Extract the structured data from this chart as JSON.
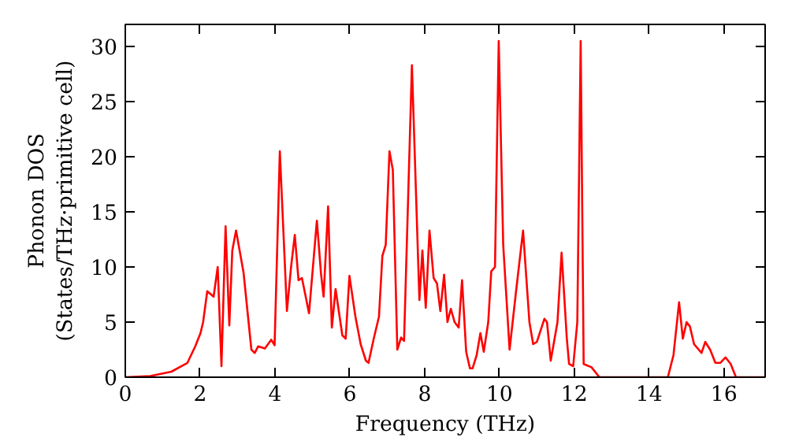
{
  "chart_data": {
    "type": "line",
    "xlabel": "Frequency (THz)",
    "ylabel": "Phonon DOS\n(States/THz·primitive cell)",
    "xlim": [
      0,
      17.1
    ],
    "ylim": [
      0,
      32
    ],
    "xticks": [
      0,
      2,
      4,
      6,
      8,
      10,
      12,
      14,
      16
    ],
    "yticks": [
      0,
      5,
      10,
      15,
      20,
      25,
      30
    ],
    "grid": false,
    "line_style": "solid",
    "series": [
      {
        "color": "#ff0000",
        "x": [
          0,
          0.67,
          1.23,
          1.66,
          1.87,
          2.01,
          2.08,
          2.19,
          2.36,
          2.47,
          2.57,
          2.68,
          2.78,
          2.86,
          2.96,
          3.16,
          3.37,
          3.46,
          3.55,
          3.73,
          3.9,
          3.99,
          4.13,
          4.32,
          4.43,
          4.53,
          4.63,
          4.72,
          4.81,
          4.91,
          5.12,
          5.23,
          5.3,
          5.42,
          5.52,
          5.62,
          5.8,
          5.89,
          5.99,
          6.15,
          6.29,
          6.43,
          6.5,
          6.64,
          6.78,
          6.87,
          6.96,
          7.06,
          7.15,
          7.27,
          7.37,
          7.45,
          7.66,
          7.86,
          7.94,
          8.03,
          8.13,
          8.24,
          8.33,
          8.42,
          8.52,
          8.61,
          8.7,
          8.8,
          8.91,
          9.0,
          9.11,
          9.21,
          9.28,
          9.39,
          9.49,
          9.58,
          9.7,
          9.78,
          9.88,
          9.98,
          10.1,
          10.27,
          10.45,
          10.63,
          10.8,
          10.9,
          11.0,
          11.2,
          11.27,
          11.37,
          11.55,
          11.66,
          11.8,
          11.86,
          11.97,
          12.08,
          12.17,
          12.25,
          12.46,
          12.67,
          14.5,
          14.65,
          14.8,
          14.9,
          15.0,
          15.09,
          15.2,
          15.4,
          15.5,
          15.63,
          15.77,
          15.9,
          16.04,
          16.18,
          16.32,
          17.1
        ],
        "values": [
          0,
          0.1,
          0.5,
          1.3,
          2.8,
          4,
          5,
          7.8,
          7.3,
          10,
          1,
          13.7,
          4.7,
          11.5,
          13.3,
          9.5,
          2.5,
          2.2,
          2.8,
          2.6,
          3.4,
          2.9,
          20.5,
          6,
          10,
          12.9,
          8.8,
          9,
          7.5,
          5.8,
          14.2,
          9.4,
          7.3,
          15.5,
          4.5,
          8,
          3.8,
          3.5,
          9.2,
          5.5,
          3,
          1.5,
          1.3,
          3.5,
          5.5,
          11,
          12,
          20.5,
          18.8,
          2.5,
          3.6,
          3.3,
          28.3,
          7,
          11.5,
          6.3,
          13.3,
          9,
          8.5,
          6,
          9.3,
          5,
          6.2,
          5,
          4.5,
          8.8,
          2.3,
          0.8,
          0.8,
          2,
          4,
          2.3,
          5,
          9.6,
          10,
          30.5,
          12,
          2.5,
          8,
          13.3,
          5,
          3,
          3.2,
          5.3,
          5,
          1.5,
          5,
          11.3,
          3.5,
          1.2,
          1,
          5,
          30.5,
          1.2,
          0.9,
          0,
          0,
          2,
          6.8,
          3.5,
          5,
          4.6,
          3,
          2.2,
          3.2,
          2.5,
          1.3,
          1.3,
          1.8,
          1.2,
          0,
          0
        ]
      }
    ]
  }
}
